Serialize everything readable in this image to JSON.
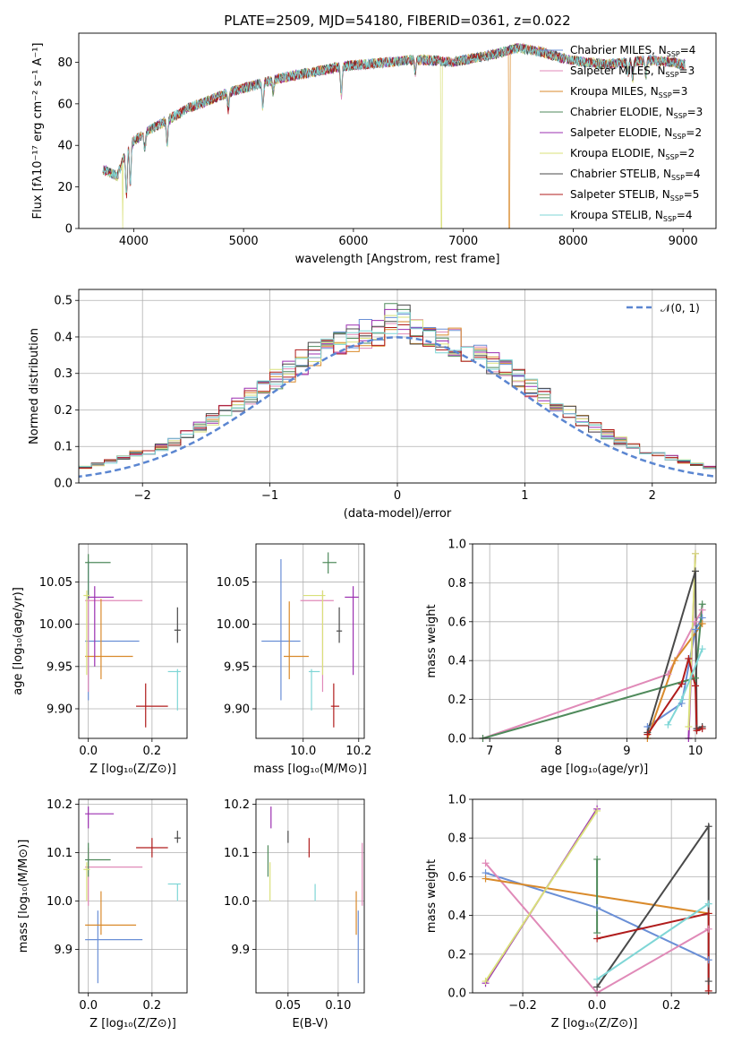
{
  "colors": {
    "Chabrier MILES": "#6a8fd6",
    "Salpeter MILES": "#e08ab8",
    "Kroupa MILES": "#d98a2b",
    "Chabrier ELODIE": "#4f8a5b",
    "Salpeter ELODIE": "#9b2fb0",
    "Kroupa ELODIE": "#d9e07a",
    "Chabrier STELIB": "#4a4a4a",
    "Salpeter STELIB": "#b01c1c",
    "Kroupa STELIB": "#7fd6d6",
    "Gaussian": "#5b86d1"
  },
  "chart_data": [
    {
      "id": "spectrum",
      "type": "line",
      "title": "PLATE=2509, MJD=54180, FIBERID=0361, z=0.022",
      "xlabel": "wavelength [Angstrom, rest frame]",
      "ylabel": "Flux [fλ10⁻¹⁷ erg cm⁻² s⁻¹ A⁻¹]",
      "xlim": [
        3500,
        9300
      ],
      "ylim": [
        0,
        94
      ],
      "xticks": [
        4000,
        5000,
        6000,
        7000,
        8000,
        9000
      ],
      "yticks": [
        0,
        20,
        40,
        60,
        80
      ],
      "grid": false,
      "legend_position": "right",
      "legend": [
        {
          "name": "Chabrier MILES",
          "nssp": "4"
        },
        {
          "name": "Salpeter MILES",
          "nssp": "3"
        },
        {
          "name": "Kroupa MILES",
          "nssp": "3"
        },
        {
          "name": "Chabrier ELODIE",
          "nssp": "3"
        },
        {
          "name": "Salpeter ELODIE",
          "nssp": "2"
        },
        {
          "name": "Kroupa ELODIE",
          "nssp": "2"
        },
        {
          "name": "Chabrier STELIB",
          "nssp": "4"
        },
        {
          "name": "Salpeter STELIB",
          "nssp": "5"
        },
        {
          "name": "Kroupa STELIB",
          "nssp": "4"
        }
      ],
      "continuum": [
        [
          3750,
          28
        ],
        [
          3850,
          25
        ],
        [
          3950,
          40
        ],
        [
          4100,
          46
        ],
        [
          4300,
          52
        ],
        [
          4500,
          58
        ],
        [
          4700,
          62
        ],
        [
          4900,
          66
        ],
        [
          5100,
          69
        ],
        [
          5300,
          72
        ],
        [
          5500,
          74
        ],
        [
          5700,
          76
        ],
        [
          5900,
          78
        ],
        [
          6100,
          79
        ],
        [
          6300,
          80
        ],
        [
          6500,
          81
        ],
        [
          6700,
          81
        ],
        [
          6900,
          80
        ],
        [
          7100,
          82
        ],
        [
          7300,
          84
        ],
        [
          7500,
          87
        ],
        [
          7700,
          85
        ],
        [
          7900,
          82
        ],
        [
          8100,
          80
        ],
        [
          8300,
          79
        ],
        [
          8500,
          80
        ],
        [
          8700,
          81
        ],
        [
          8900,
          80
        ],
        [
          9000,
          79
        ]
      ],
      "absorption_lines": [
        [
          3934,
          22
        ],
        [
          3969,
          20
        ],
        [
          4102,
          8
        ],
        [
          4305,
          12
        ],
        [
          4861,
          8
        ],
        [
          5175,
          12
        ],
        [
          5270,
          6
        ],
        [
          5890,
          14
        ],
        [
          6563,
          6
        ],
        [
          8500,
          5
        ],
        [
          8542,
          8
        ],
        [
          8662,
          7
        ]
      ],
      "drops": [
        {
          "series": "Kroupa ELODIE",
          "x": 3900
        },
        {
          "series": "Kroupa ELODIE",
          "x": 6800
        },
        {
          "series": "Kroupa MILES",
          "x": 7420
        }
      ]
    },
    {
      "id": "residuals",
      "type": "histogram",
      "xlabel": "(data-model)/error",
      "ylabel": "Normed distribution",
      "xlim": [
        -2.5,
        2.5
      ],
      "ylim": [
        0,
        0.53
      ],
      "xticks": [
        -2,
        -1,
        0,
        1,
        2
      ],
      "yticks": [
        0.0,
        0.1,
        0.2,
        0.3,
        0.4,
        0.5
      ],
      "grid": true,
      "legend_position": "top-right",
      "gaussian_label": "𝒩(0, 1)",
      "bin_width": 0.1,
      "gaussian_mean": 0,
      "gaussian_sigma": 1
    },
    {
      "id": "z_vs_age",
      "type": "scatter",
      "xlabel": "Z [log₁₀(Z/Z⊙)]",
      "ylabel": "age  [log₁₀(age/yr)]",
      "xlim": [
        -0.03,
        0.31
      ],
      "ylim": [
        9.865,
        10.095
      ],
      "xticks": [
        0.0,
        0.2
      ],
      "yticks": [
        9.9,
        9.95,
        10.0,
        10.05
      ],
      "grid": true,
      "points": [
        {
          "series": "Chabrier MILES",
          "x": 0.0,
          "y": 9.98,
          "xlo": -0.01,
          "xhi": 0.16,
          "ylo": 9.91,
          "yhi": 10.075
        },
        {
          "series": "Salpeter MILES",
          "x": 0.0,
          "y": 10.028,
          "xlo": -0.01,
          "xhi": 0.17,
          "ylo": 9.92,
          "yhi": 10.04
        },
        {
          "series": "Kroupa MILES",
          "x": 0.04,
          "y": 9.962,
          "xlo": -0.01,
          "xhi": 0.14,
          "ylo": 9.935,
          "yhi": 10.03
        },
        {
          "series": "Chabrier ELODIE",
          "x": 0.0,
          "y": 10.073,
          "xlo": -0.01,
          "xhi": 0.07,
          "ylo": 10.03,
          "yhi": 10.083
        },
        {
          "series": "Salpeter ELODIE",
          "x": 0.02,
          "y": 10.032,
          "xlo": 0.0,
          "xhi": 0.08,
          "ylo": 9.95,
          "yhi": 10.045
        },
        {
          "series": "Kroupa ELODIE",
          "x": -0.005,
          "y": 10.034,
          "xlo": -0.015,
          "xhi": 0.005,
          "ylo": 9.94,
          "yhi": 10.04
        },
        {
          "series": "Chabrier STELIB",
          "x": 0.28,
          "y": 9.993,
          "xlo": 0.27,
          "xhi": 0.29,
          "ylo": 9.978,
          "yhi": 10.02
        },
        {
          "series": "Salpeter STELIB",
          "x": 0.18,
          "y": 9.903,
          "xlo": 0.15,
          "xhi": 0.25,
          "ylo": 9.878,
          "yhi": 9.93
        },
        {
          "series": "Kroupa STELIB",
          "x": 0.28,
          "y": 9.944,
          "xlo": 0.25,
          "xhi": 0.29,
          "ylo": 9.898,
          "yhi": 9.947
        }
      ]
    },
    {
      "id": "mass_vs_age",
      "type": "scatter",
      "xlabel": "mass [log₁₀(M/M⊙)]",
      "xlim": [
        9.83,
        10.22
      ],
      "ylim": [
        9.865,
        10.095
      ],
      "xticks": [
        10.0,
        10.2
      ],
      "yticks": [
        9.9,
        9.95,
        10.0,
        10.05
      ],
      "grid": true,
      "points": [
        {
          "series": "Chabrier MILES",
          "x": 9.92,
          "y": 9.98,
          "xlo": 9.85,
          "xhi": 9.99,
          "ylo": 9.91,
          "yhi": 10.077
        },
        {
          "series": "Salpeter MILES",
          "x": 10.07,
          "y": 10.028,
          "xlo": 9.99,
          "xhi": 10.11,
          "ylo": 9.92,
          "yhi": 10.04
        },
        {
          "series": "Kroupa MILES",
          "x": 9.95,
          "y": 9.962,
          "xlo": 9.93,
          "xhi": 10.02,
          "ylo": 9.935,
          "yhi": 10.027
        },
        {
          "series": "Chabrier ELODIE",
          "x": 10.09,
          "y": 10.073,
          "xlo": 10.07,
          "xhi": 10.12,
          "ylo": 10.06,
          "yhi": 10.085
        },
        {
          "series": "Salpeter ELODIE",
          "x": 10.18,
          "y": 10.032,
          "xlo": 10.15,
          "xhi": 10.2,
          "ylo": 9.94,
          "yhi": 10.045
        },
        {
          "series": "Kroupa ELODIE",
          "x": 10.07,
          "y": 10.034,
          "xlo": 10.0,
          "xhi": 10.08,
          "ylo": 9.94,
          "yhi": 10.04
        },
        {
          "series": "Chabrier STELIB",
          "x": 10.13,
          "y": 9.992,
          "xlo": 10.12,
          "xhi": 10.14,
          "ylo": 9.978,
          "yhi": 10.02
        },
        {
          "series": "Salpeter STELIB",
          "x": 10.11,
          "y": 9.903,
          "xlo": 10.1,
          "xhi": 10.13,
          "ylo": 9.878,
          "yhi": 9.93
        },
        {
          "series": "Kroupa STELIB",
          "x": 10.03,
          "y": 9.944,
          "xlo": 10.02,
          "xhi": 10.06,
          "ylo": 9.898,
          "yhi": 9.947
        }
      ]
    },
    {
      "id": "age_weights",
      "type": "line",
      "xlabel": "age  [log₁₀(age/yr)]",
      "ylabel": "mass weight",
      "xlim": [
        6.75,
        10.3
      ],
      "ylim": [
        0,
        1
      ],
      "xticks": [
        7,
        8,
        9,
        10
      ],
      "yticks": [
        0.0,
        0.2,
        0.4,
        0.6,
        0.8,
        1.0
      ],
      "grid": true,
      "series": [
        {
          "name": "Chabrier MILES",
          "points": [
            [
              9.3,
              0.06
            ],
            [
              9.8,
              0.18
            ],
            [
              10.0,
              0.56
            ],
            [
              10.1,
              0.62
            ]
          ]
        },
        {
          "name": "Salpeter MILES",
          "points": [
            [
              6.9,
              0.0
            ],
            [
              9.6,
              0.33
            ],
            [
              10.0,
              0.6
            ],
            [
              10.1,
              0.66
            ]
          ]
        },
        {
          "name": "Kroupa MILES",
          "points": [
            [
              9.3,
              0.0
            ],
            [
              9.7,
              0.4
            ],
            [
              10.1,
              0.59
            ]
          ]
        },
        {
          "name": "Chabrier ELODIE",
          "points": [
            [
              6.9,
              0.0
            ],
            [
              10.0,
              0.31
            ],
            [
              10.1,
              0.69
            ]
          ]
        },
        {
          "name": "Salpeter ELODIE",
          "points": [
            [
              9.9,
              0.0
            ],
            [
              10.0,
              0.95
            ]
          ]
        },
        {
          "name": "Kroupa ELODIE",
          "points": [
            [
              9.9,
              0.06
            ],
            [
              10.0,
              0.95
            ]
          ]
        },
        {
          "name": "Chabrier STELIB",
          "points": [
            [
              9.3,
              0.03
            ],
            [
              10.0,
              0.86
            ],
            [
              10.02,
              0.05
            ],
            [
              10.1,
              0.06
            ]
          ]
        },
        {
          "name": "Salpeter STELIB",
          "points": [
            [
              9.3,
              0.02
            ],
            [
              9.8,
              0.28
            ],
            [
              9.9,
              0.41
            ],
            [
              10.0,
              0.27
            ],
            [
              10.02,
              0.04
            ],
            [
              10.1,
              0.05
            ]
          ]
        },
        {
          "name": "Kroupa STELIB",
          "points": [
            [
              9.6,
              0.07
            ],
            [
              9.8,
              0.2
            ],
            [
              10.1,
              0.46
            ]
          ]
        }
      ]
    },
    {
      "id": "z_vs_mass",
      "type": "scatter",
      "xlabel": "Z [log₁₀(Z/Z⊙)]",
      "ylabel": "mass [log₁₀(M/M⊙)]",
      "xlim": [
        -0.03,
        0.31
      ],
      "ylim": [
        9.81,
        10.21
      ],
      "xticks": [
        0.0,
        0.2
      ],
      "yticks": [
        9.9,
        10.0,
        10.1,
        10.2
      ],
      "grid": true,
      "points": [
        {
          "series": "Chabrier MILES",
          "x": 0.03,
          "y": 9.92,
          "xlo": -0.01,
          "xhi": 0.17,
          "ylo": 9.83,
          "yhi": 9.98
        },
        {
          "series": "Salpeter MILES",
          "x": 0.0,
          "y": 10.07,
          "xlo": -0.01,
          "xhi": 0.17,
          "ylo": 9.99,
          "yhi": 10.11
        },
        {
          "series": "Kroupa MILES",
          "x": 0.04,
          "y": 9.95,
          "xlo": -0.01,
          "xhi": 0.15,
          "ylo": 9.93,
          "yhi": 10.02
        },
        {
          "series": "Chabrier ELODIE",
          "x": 0.0,
          "y": 10.085,
          "xlo": -0.01,
          "xhi": 0.07,
          "ylo": 10.05,
          "yhi": 10.12
        },
        {
          "series": "Salpeter ELODIE",
          "x": 0.0,
          "y": 10.18,
          "xlo": -0.01,
          "xhi": 0.08,
          "ylo": 10.15,
          "yhi": 10.195
        },
        {
          "series": "Kroupa ELODIE",
          "x": -0.005,
          "y": 10.065,
          "xlo": -0.015,
          "xhi": 0.005,
          "ylo": 10.0,
          "yhi": 10.08
        },
        {
          "series": "Chabrier STELIB",
          "x": 0.28,
          "y": 10.13,
          "xlo": 0.27,
          "xhi": 0.29,
          "ylo": 10.12,
          "yhi": 10.145
        },
        {
          "series": "Salpeter STELIB",
          "x": 0.2,
          "y": 10.11,
          "xlo": 0.15,
          "xhi": 0.25,
          "ylo": 10.09,
          "yhi": 10.13
        },
        {
          "series": "Kroupa STELIB",
          "x": 0.28,
          "y": 10.035,
          "xlo": 0.25,
          "xhi": 0.29,
          "ylo": 10.0,
          "yhi": 10.035
        }
      ]
    },
    {
      "id": "ebv_vs_mass",
      "type": "scatter",
      "xlabel": "E(B-V)",
      "xlim": [
        0.018,
        0.126
      ],
      "ylim": [
        9.81,
        10.21
      ],
      "xticks": [
        0.05,
        0.1
      ],
      "yticks": [
        9.9,
        10.0,
        10.1,
        10.2
      ],
      "grid": true,
      "points": [
        {
          "series": "Chabrier MILES",
          "x": 0.12,
          "y": 9.92,
          "xlo": 0.12,
          "xhi": 0.12,
          "ylo": 9.83,
          "yhi": 9.98
        },
        {
          "series": "Salpeter MILES",
          "x": 0.124,
          "y": 10.07,
          "xlo": 0.124,
          "xhi": 0.124,
          "ylo": 9.99,
          "yhi": 10.12
        },
        {
          "series": "Kroupa MILES",
          "x": 0.118,
          "y": 9.95,
          "xlo": 0.118,
          "xhi": 0.118,
          "ylo": 9.93,
          "yhi": 10.02
        },
        {
          "series": "Chabrier ELODIE",
          "x": 0.03,
          "y": 10.085,
          "xlo": 0.03,
          "xhi": 0.03,
          "ylo": 10.05,
          "yhi": 10.115
        },
        {
          "series": "Salpeter ELODIE",
          "x": 0.033,
          "y": 10.18,
          "xlo": 0.033,
          "xhi": 0.033,
          "ylo": 10.15,
          "yhi": 10.195
        },
        {
          "series": "Kroupa ELODIE",
          "x": 0.032,
          "y": 10.065,
          "xlo": 0.032,
          "xhi": 0.032,
          "ylo": 10.0,
          "yhi": 10.08
        },
        {
          "series": "Chabrier STELIB",
          "x": 0.05,
          "y": 10.13,
          "xlo": 0.05,
          "xhi": 0.05,
          "ylo": 10.12,
          "yhi": 10.145
        },
        {
          "series": "Salpeter STELIB",
          "x": 0.071,
          "y": 10.11,
          "xlo": 0.071,
          "xhi": 0.071,
          "ylo": 10.09,
          "yhi": 10.13
        },
        {
          "series": "Kroupa STELIB",
          "x": 0.077,
          "y": 10.035,
          "xlo": 0.077,
          "xhi": 0.077,
          "ylo": 10.0,
          "yhi": 10.035
        },
        {
          "series": "Kroupa MILES",
          "x": 0.124,
          "y": 10.0,
          "xlo": 0.124,
          "xhi": 0.124,
          "ylo": 9.97,
          "yhi": 9.97
        }
      ]
    },
    {
      "id": "z_weights",
      "type": "line",
      "xlabel": "Z [log₁₀(Z/Z⊙)]",
      "ylabel": "mass weight",
      "xlim": [
        -0.335,
        0.32
      ],
      "ylim": [
        0,
        1
      ],
      "xticks": [
        -0.2,
        0.0,
        0.2
      ],
      "yticks": [
        0.0,
        0.2,
        0.4,
        0.6,
        0.8,
        1.0
      ],
      "grid": true,
      "series": [
        {
          "name": "Chabrier MILES",
          "points": [
            [
              -0.3,
              0.62
            ],
            [
              0.0,
              0.44
            ],
            [
              0.3,
              0.17
            ]
          ]
        },
        {
          "name": "Salpeter MILES",
          "points": [
            [
              -0.3,
              0.67
            ],
            [
              0.0,
              0.0
            ],
            [
              0.3,
              0.33
            ]
          ]
        },
        {
          "name": "Kroupa MILES",
          "points": [
            [
              -0.3,
              0.59
            ],
            [
              0.3,
              0.41
            ]
          ]
        },
        {
          "name": "Chabrier ELODIE",
          "points": [
            [
              0.0,
              0.69
            ],
            [
              0.0,
              0.31
            ]
          ]
        },
        {
          "name": "Salpeter ELODIE",
          "points": [
            [
              -0.3,
              0.05
            ],
            [
              0.0,
              0.95
            ]
          ]
        },
        {
          "name": "Kroupa ELODIE",
          "points": [
            [
              -0.3,
              0.06
            ],
            [
              0.0,
              0.94
            ]
          ]
        },
        {
          "name": "Chabrier STELIB",
          "points": [
            [
              0.0,
              0.03
            ],
            [
              0.3,
              0.86
            ],
            [
              0.3,
              0.06
            ]
          ]
        },
        {
          "name": "Salpeter STELIB",
          "points": [
            [
              0.0,
              0.28
            ],
            [
              0.3,
              0.41
            ],
            [
              0.3,
              0.01
            ]
          ]
        },
        {
          "name": "Kroupa STELIB",
          "points": [
            [
              0.0,
              0.07
            ],
            [
              0.3,
              0.46
            ]
          ]
        }
      ]
    }
  ]
}
